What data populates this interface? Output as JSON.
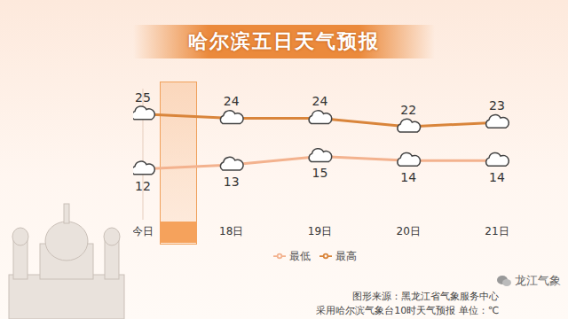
{
  "chart_data": {
    "type": "line",
    "title": "哈尔滨五日天气预报",
    "categories": [
      "今日",
      "18日",
      "19日",
      "20日",
      "21日"
    ],
    "series": [
      {
        "name": "最高",
        "color": "#d9853b",
        "values": [
          25,
          24,
          24,
          22,
          23
        ],
        "marker": "cloud"
      },
      {
        "name": "最低",
        "color": "#f3b28e",
        "values": [
          12,
          13,
          15,
          14,
          14
        ],
        "marker": "cloud"
      }
    ],
    "ylim": [
      0,
      31
    ],
    "data_labels": true,
    "tick_labels": "x",
    "legend": "bottom",
    "annotations": [
      "图形来源：黑龙江省气象服务中心",
      "采用哈尔滨气象台10时天气预报 单位：℃",
      "龙江气象"
    ]
  }
}
